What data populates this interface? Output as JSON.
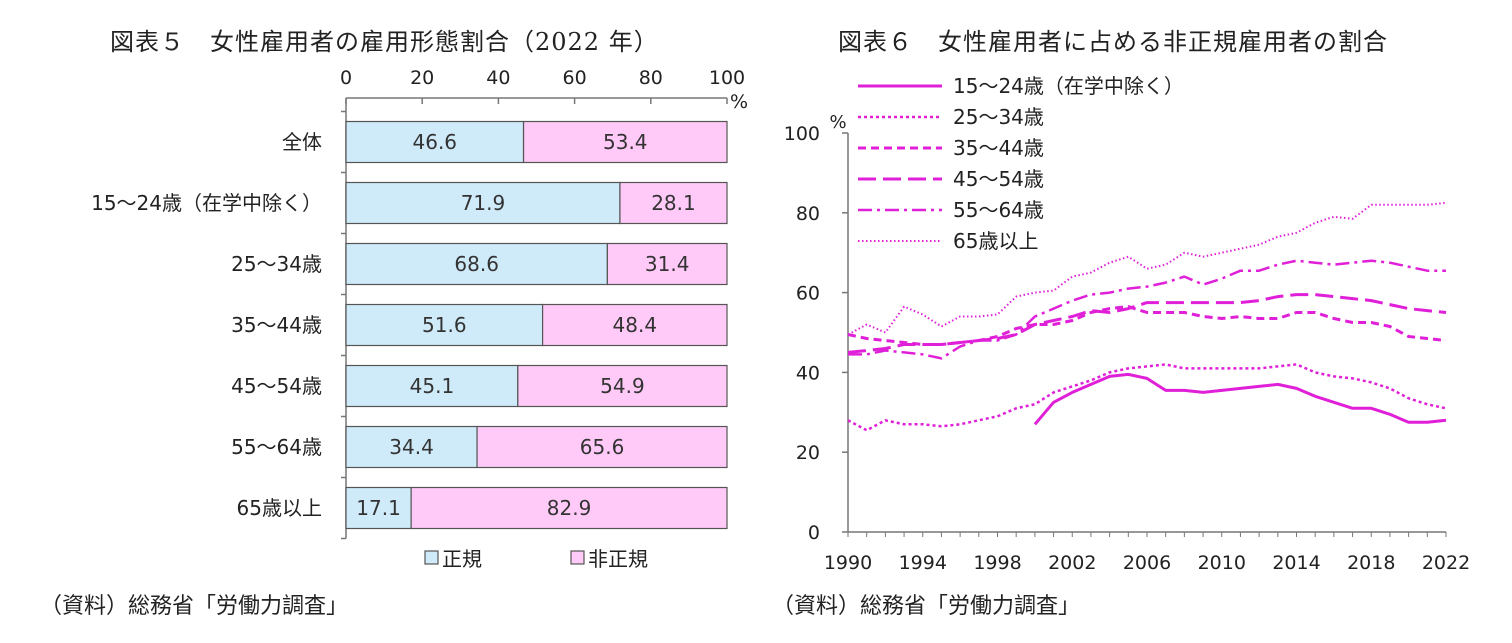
{
  "chart_data": [
    {
      "type": "bar",
      "stacked": true,
      "orientation": "horizontal",
      "title": "図表５　女性雇用者の雇用形態割合（2022 年）",
      "xunit": "%",
      "xlim": [
        0,
        100
      ],
      "xticks": [
        "0",
        "20",
        "40",
        "60",
        "80",
        "100"
      ],
      "categories": [
        "全体",
        "15～24歳（在学中除く）",
        "25～34歳",
        "35～44歳",
        "45～54歳",
        "55～64歳",
        "65歳以上"
      ],
      "series": [
        {
          "name": "正規",
          "color": "#cfeaf8",
          "values": [
            46.6,
            71.9,
            68.6,
            51.6,
            45.1,
            34.4,
            17.1
          ]
        },
        {
          "name": "非正規",
          "color": "#ffcaf7",
          "values": [
            53.4,
            28.1,
            31.4,
            48.4,
            54.9,
            65.6,
            82.9
          ]
        }
      ],
      "legend_position": "bottom",
      "source": "（資料）総務省「労働力調査」"
    },
    {
      "type": "line",
      "title": "図表６　女性雇用者に占める非正規雇用者の割合",
      "yunit": "%",
      "ylim": [
        0,
        100
      ],
      "yticks": [
        "0",
        "20",
        "40",
        "60",
        "80",
        "100"
      ],
      "xlim": [
        1990,
        2022
      ],
      "xticks": [
        "1990",
        "1994",
        "1998",
        "2002",
        "2006",
        "2010",
        "2014",
        "2018",
        "2022"
      ],
      "color": "#e020d8",
      "legend_position": "top-left",
      "series": [
        {
          "name": "15～24歳（在学中除く）",
          "style": "solid",
          "x": [
            2000,
            2001,
            2002,
            2003,
            2004,
            2005,
            2006,
            2007,
            2008,
            2009,
            2010,
            2011,
            2012,
            2013,
            2014,
            2015,
            2016,
            2017,
            2018,
            2019,
            2020,
            2021,
            2022
          ],
          "values": [
            27,
            32.5,
            35,
            37,
            39,
            39.5,
            38.5,
            35.5,
            35.5,
            35,
            35.5,
            36,
            36.5,
            37,
            36,
            34,
            32.5,
            31,
            31,
            29.5,
            27.5,
            27.5,
            28
          ]
        },
        {
          "name": "25～34歳",
          "style": "dotted",
          "x": [
            1990,
            1991,
            1992,
            1993,
            1994,
            1995,
            1996,
            1997,
            1998,
            1999,
            2000,
            2001,
            2002,
            2003,
            2004,
            2005,
            2006,
            2007,
            2008,
            2009,
            2010,
            2011,
            2012,
            2013,
            2014,
            2015,
            2016,
            2017,
            2018,
            2019,
            2020,
            2021,
            2022
          ],
          "values": [
            28,
            25.5,
            28,
            27,
            27,
            26.5,
            27,
            28,
            29,
            31,
            32,
            35,
            36.5,
            38,
            40,
            41,
            41.5,
            42,
            41,
            41,
            41,
            41,
            41,
            41.5,
            42,
            40,
            39,
            38.5,
            37.5,
            36,
            33.5,
            32,
            31
          ]
        },
        {
          "name": "35～44歳",
          "style": "short-dash",
          "x": [
            1990,
            1991,
            1992,
            1993,
            1994,
            1995,
            1996,
            1997,
            1998,
            1999,
            2000,
            2001,
            2002,
            2003,
            2004,
            2005,
            2006,
            2007,
            2008,
            2009,
            2010,
            2011,
            2012,
            2013,
            2014,
            2015,
            2016,
            2017,
            2018,
            2019,
            2020,
            2021,
            2022
          ],
          "values": [
            49.5,
            48.5,
            48,
            47.5,
            47,
            47,
            47.5,
            48,
            49,
            51,
            52,
            52,
            53,
            55,
            56,
            56.5,
            55,
            55,
            55,
            54,
            53.5,
            54,
            53.5,
            53.5,
            55,
            55,
            53.5,
            52.5,
            52.5,
            51.5,
            49,
            48.5,
            48
          ]
        },
        {
          "name": "45～54歳",
          "style": "long-dash",
          "x": [
            1990,
            1991,
            1992,
            1993,
            1994,
            1995,
            1996,
            1997,
            1998,
            1999,
            2000,
            2001,
            2002,
            2003,
            2004,
            2005,
            2006,
            2007,
            2008,
            2009,
            2010,
            2011,
            2012,
            2013,
            2014,
            2015,
            2016,
            2017,
            2018,
            2019,
            2020,
            2021,
            2022
          ],
          "values": [
            45,
            45.5,
            46,
            47,
            47,
            47,
            47.5,
            48,
            48.5,
            49.5,
            52,
            53,
            54,
            55.5,
            55,
            56,
            57.5,
            57.5,
            57.5,
            57.5,
            57.5,
            57.5,
            58,
            59,
            59.5,
            59.5,
            59,
            58.5,
            58,
            57,
            56,
            55.5,
            55
          ]
        },
        {
          "name": "55～64歳",
          "style": "dash-dot",
          "x": [
            1990,
            1991,
            1992,
            1993,
            1994,
            1995,
            1996,
            1997,
            1998,
            1999,
            2000,
            2001,
            2002,
            2003,
            2004,
            2005,
            2006,
            2007,
            2008,
            2009,
            2010,
            2011,
            2012,
            2013,
            2014,
            2015,
            2016,
            2017,
            2018,
            2019,
            2020,
            2021,
            2022
          ],
          "values": [
            44.5,
            44.5,
            45.5,
            45,
            44.5,
            43.5,
            46.5,
            48,
            48,
            49.5,
            54,
            56,
            58,
            59.5,
            60,
            61,
            61.5,
            62.5,
            64,
            62,
            63.5,
            65.5,
            65.5,
            67,
            68,
            67.5,
            67,
            67.5,
            68,
            67.5,
            66.5,
            65.5,
            65.5
          ]
        },
        {
          "name": "65歳以上",
          "style": "fine-dotted",
          "x": [
            1990,
            1991,
            1992,
            1993,
            1994,
            1995,
            1996,
            1997,
            1998,
            1999,
            2000,
            2001,
            2002,
            2003,
            2004,
            2005,
            2006,
            2007,
            2008,
            2009,
            2010,
            2011,
            2012,
            2013,
            2014,
            2015,
            2016,
            2017,
            2018,
            2019,
            2020,
            2021,
            2022
          ],
          "values": [
            49.5,
            52,
            50,
            56.5,
            54.5,
            51.5,
            54,
            54,
            54.5,
            59,
            60,
            60.5,
            64,
            65,
            67.5,
            69,
            66,
            67,
            70,
            69,
            70,
            71,
            72,
            74,
            75,
            77.5,
            79,
            78.5,
            82,
            82,
            82,
            82,
            82.5
          ]
        }
      ],
      "source": "（資料）総務省「労働力調査」"
    }
  ]
}
